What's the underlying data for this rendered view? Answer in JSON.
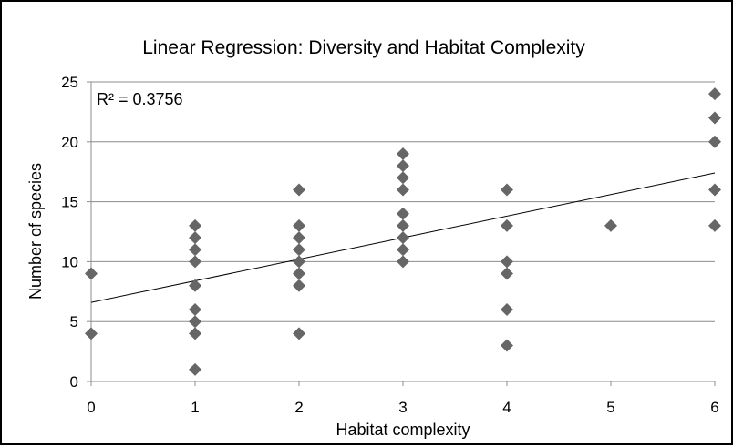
{
  "chart_data": {
    "type": "scatter",
    "title": "Linear Regression: Diversity and Habitat Complexity",
    "xlabel": "Habitat complexity",
    "ylabel": "Number of species",
    "xlim": [
      0,
      6
    ],
    "ylim": [
      0,
      25
    ],
    "x_ticks": [
      0,
      1,
      2,
      3,
      4,
      5,
      6
    ],
    "y_ticks": [
      0,
      5,
      10,
      15,
      20,
      25
    ],
    "grid": "horizontal",
    "legend": "none",
    "annotation": "R² = 0.3756",
    "marker_color": "#666666",
    "trendline": {
      "type": "linear",
      "start": [
        0,
        6.6
      ],
      "end": [
        6,
        17.4
      ],
      "color": "#000000"
    },
    "points": [
      {
        "x": 0,
        "y": 9
      },
      {
        "x": 0,
        "y": 4
      },
      {
        "x": 1,
        "y": 13
      },
      {
        "x": 1,
        "y": 12
      },
      {
        "x": 1,
        "y": 11
      },
      {
        "x": 1,
        "y": 10
      },
      {
        "x": 1,
        "y": 8
      },
      {
        "x": 1,
        "y": 6
      },
      {
        "x": 1,
        "y": 5
      },
      {
        "x": 1,
        "y": 4
      },
      {
        "x": 1,
        "y": 1
      },
      {
        "x": 2,
        "y": 16
      },
      {
        "x": 2,
        "y": 13
      },
      {
        "x": 2,
        "y": 12
      },
      {
        "x": 2,
        "y": 11
      },
      {
        "x": 2,
        "y": 10
      },
      {
        "x": 2,
        "y": 9
      },
      {
        "x": 2,
        "y": 8
      },
      {
        "x": 2,
        "y": 4
      },
      {
        "x": 3,
        "y": 19
      },
      {
        "x": 3,
        "y": 18
      },
      {
        "x": 3,
        "y": 17
      },
      {
        "x": 3,
        "y": 16
      },
      {
        "x": 3,
        "y": 14
      },
      {
        "x": 3,
        "y": 13
      },
      {
        "x": 3,
        "y": 12
      },
      {
        "x": 3,
        "y": 11
      },
      {
        "x": 3,
        "y": 10
      },
      {
        "x": 4,
        "y": 16
      },
      {
        "x": 4,
        "y": 13
      },
      {
        "x": 4,
        "y": 10
      },
      {
        "x": 4,
        "y": 9
      },
      {
        "x": 4,
        "y": 6
      },
      {
        "x": 4,
        "y": 3
      },
      {
        "x": 5,
        "y": 13
      },
      {
        "x": 6,
        "y": 24
      },
      {
        "x": 6,
        "y": 22
      },
      {
        "x": 6,
        "y": 20
      },
      {
        "x": 6,
        "y": 16
      },
      {
        "x": 6,
        "y": 13
      }
    ]
  }
}
